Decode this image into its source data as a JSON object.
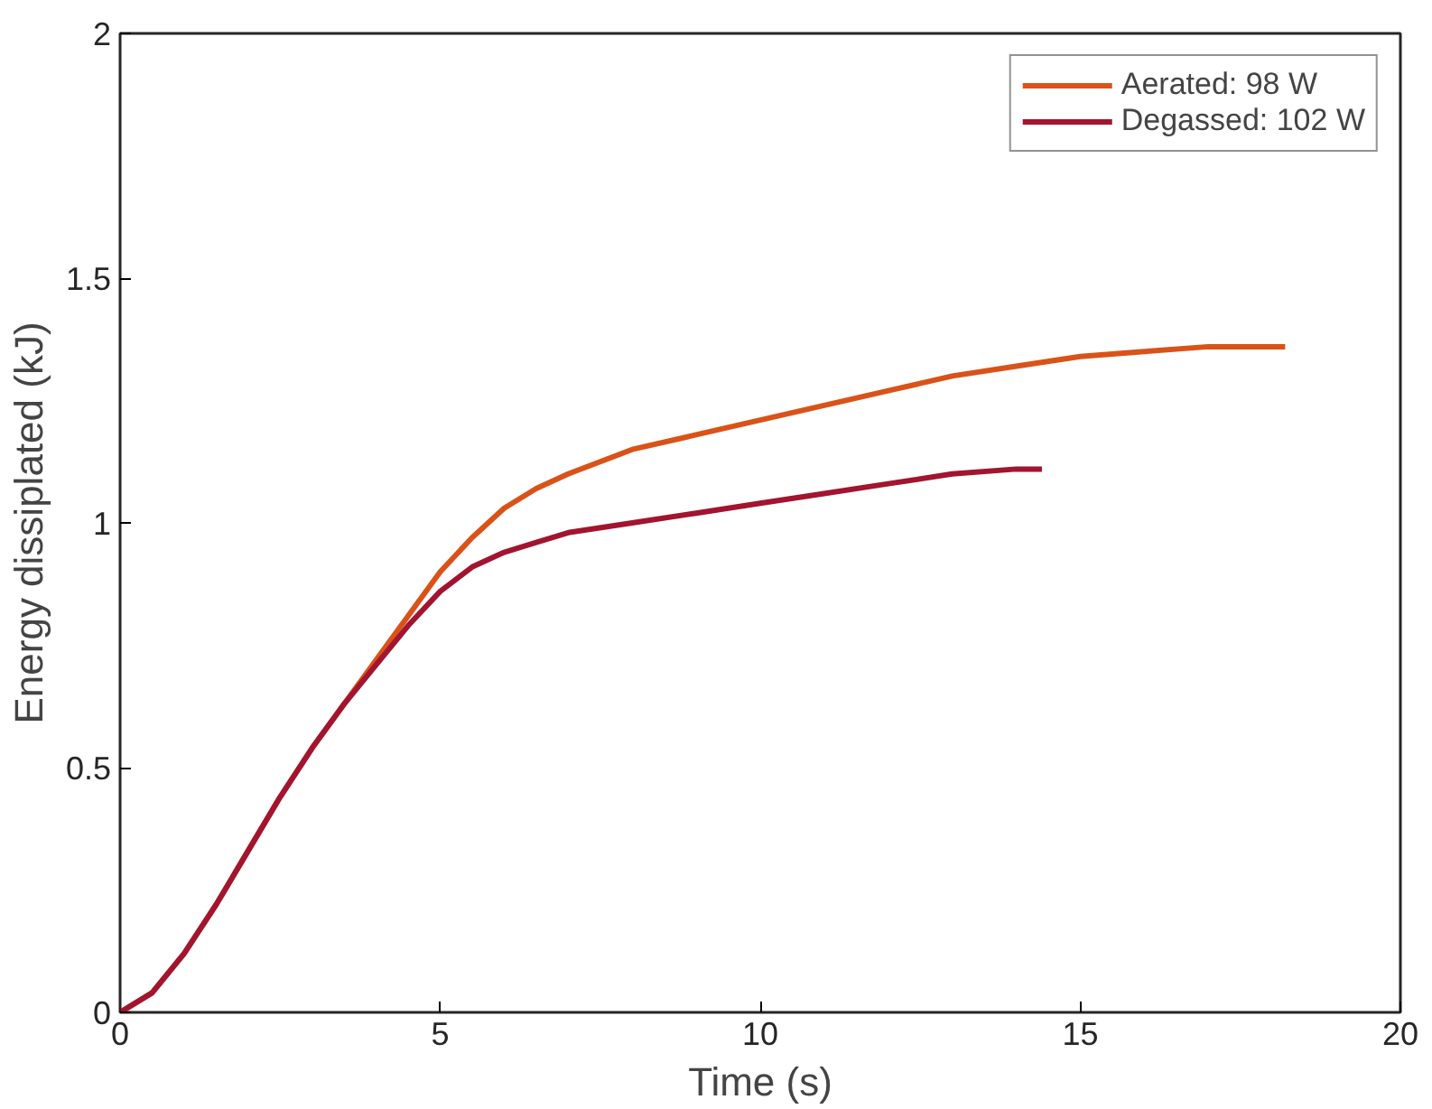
{
  "chart_data": {
    "type": "line",
    "xlabel": "Time (s)",
    "ylabel": "Energy dissiplated (kJ)",
    "xlim": [
      0,
      20
    ],
    "xticks": [
      0,
      5,
      10,
      15,
      20
    ],
    "ylim": [
      0,
      2
    ],
    "yticks": [
      0,
      0.5,
      1,
      1.5,
      2
    ],
    "grid": false,
    "legend": "top right",
    "line_style": "solid",
    "series": [
      {
        "name": "Aerated: 98 W",
        "color": "#d95319",
        "x": [
          0,
          0.5,
          1,
          1.5,
          2,
          2.5,
          3,
          3.5,
          4,
          4.5,
          5,
          5.5,
          6,
          6.5,
          7,
          8,
          9,
          10,
          11,
          12,
          13,
          14,
          15,
          16,
          17,
          18,
          18.2
        ],
        "values": [
          0,
          0.04,
          0.12,
          0.22,
          0.33,
          0.44,
          0.54,
          0.63,
          0.72,
          0.81,
          0.9,
          0.97,
          1.03,
          1.07,
          1.1,
          1.15,
          1.18,
          1.21,
          1.24,
          1.27,
          1.3,
          1.32,
          1.34,
          1.35,
          1.36,
          1.36,
          1.36
        ]
      },
      {
        "name": "Degassed: 102 W",
        "color": "#a2142f",
        "x": [
          0,
          0.5,
          1,
          1.5,
          2,
          2.5,
          3,
          3.5,
          4,
          4.5,
          5,
          5.5,
          6,
          6.5,
          7,
          8,
          9,
          10,
          11,
          12,
          13,
          14,
          14.4
        ],
        "values": [
          0,
          0.04,
          0.12,
          0.22,
          0.33,
          0.44,
          0.54,
          0.63,
          0.71,
          0.79,
          0.86,
          0.91,
          0.94,
          0.96,
          0.98,
          1.0,
          1.02,
          1.04,
          1.06,
          1.08,
          1.1,
          1.11,
          1.11
        ]
      }
    ]
  }
}
